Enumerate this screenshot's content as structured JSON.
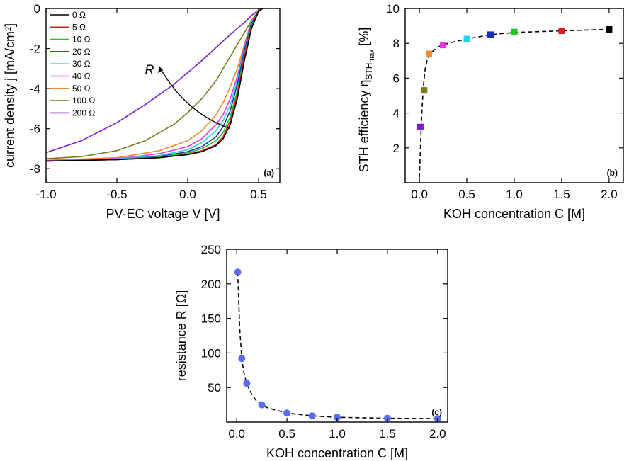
{
  "chart_data": [
    {
      "panel": "a",
      "type": "line",
      "panel_label": "(a)",
      "xlabel": "PV-EC voltage V [V]",
      "ylabel": "current density j [mA/cm²]",
      "xlim": [
        -1.0,
        0.65
      ],
      "ylim": [
        -8.7,
        0
      ],
      "xticks": [
        -1.0,
        -0.5,
        0.0,
        0.5
      ],
      "xtick_labels": [
        "-1.0",
        "-0.5",
        "0.0",
        "0.5"
      ],
      "yticks": [
        0,
        -2,
        -4,
        -6,
        -8
      ],
      "ytick_labels": [
        "0",
        "-2",
        "-4",
        "-6",
        "-8"
      ],
      "annotation": "R",
      "legend_position": "top-left",
      "series": [
        {
          "name": "0 Ω",
          "color": "#000000",
          "points": [
            [
              -1.0,
              -7.62
            ],
            [
              -0.5,
              -7.55
            ],
            [
              -0.2,
              -7.45
            ],
            [
              0.0,
              -7.3
            ],
            [
              0.1,
              -7.15
            ],
            [
              0.2,
              -6.85
            ],
            [
              0.25,
              -6.5
            ],
            [
              0.3,
              -5.8
            ],
            [
              0.35,
              -4.5
            ],
            [
              0.4,
              -2.6
            ],
            [
              0.45,
              -1.0
            ],
            [
              0.5,
              -0.15
            ],
            [
              0.53,
              0.0
            ]
          ]
        },
        {
          "name": "5 Ω",
          "color": "#e31a1c",
          "points": [
            [
              -1.0,
              -7.62
            ],
            [
              -0.5,
              -7.55
            ],
            [
              -0.2,
              -7.45
            ],
            [
              0.0,
              -7.28
            ],
            [
              0.1,
              -7.1
            ],
            [
              0.2,
              -6.8
            ],
            [
              0.25,
              -6.4
            ],
            [
              0.3,
              -5.6
            ],
            [
              0.35,
              -4.3
            ],
            [
              0.4,
              -2.4
            ],
            [
              0.45,
              -0.9
            ],
            [
              0.5,
              -0.12
            ],
            [
              0.53,
              0.0
            ]
          ]
        },
        {
          "name": "10 Ω",
          "color": "#22c422",
          "points": [
            [
              -1.0,
              -7.62
            ],
            [
              -0.5,
              -7.55
            ],
            [
              -0.2,
              -7.42
            ],
            [
              0.0,
              -7.22
            ],
            [
              0.1,
              -7.0
            ],
            [
              0.2,
              -6.6
            ],
            [
              0.25,
              -6.2
            ],
            [
              0.3,
              -5.4
            ],
            [
              0.35,
              -4.1
            ],
            [
              0.4,
              -2.3
            ],
            [
              0.45,
              -0.85
            ],
            [
              0.5,
              -0.1
            ],
            [
              0.53,
              0.0
            ]
          ]
        },
        {
          "name": "20 Ω",
          "color": "#1f2bb8",
          "points": [
            [
              -1.0,
              -7.62
            ],
            [
              -0.5,
              -7.55
            ],
            [
              -0.2,
              -7.4
            ],
            [
              0.0,
              -7.15
            ],
            [
              0.1,
              -6.9
            ],
            [
              0.2,
              -6.4
            ],
            [
              0.25,
              -5.9
            ],
            [
              0.3,
              -5.1
            ],
            [
              0.35,
              -3.8
            ],
            [
              0.4,
              -2.1
            ],
            [
              0.45,
              -0.75
            ],
            [
              0.5,
              -0.1
            ],
            [
              0.53,
              0.0
            ]
          ]
        },
        {
          "name": "30 Ω",
          "color": "#22d3e6",
          "points": [
            [
              -1.0,
              -7.62
            ],
            [
              -0.5,
              -7.52
            ],
            [
              -0.2,
              -7.35
            ],
            [
              0.0,
              -7.05
            ],
            [
              0.1,
              -6.7
            ],
            [
              0.2,
              -6.1
            ],
            [
              0.25,
              -5.6
            ],
            [
              0.3,
              -4.8
            ],
            [
              0.35,
              -3.6
            ],
            [
              0.4,
              -2.0
            ],
            [
              0.45,
              -0.7
            ],
            [
              0.5,
              -0.08
            ],
            [
              0.53,
              0.0
            ]
          ]
        },
        {
          "name": "40 Ω",
          "color": "#e834e8",
          "points": [
            [
              -1.0,
              -7.6
            ],
            [
              -0.5,
              -7.5
            ],
            [
              -0.2,
              -7.25
            ],
            [
              0.0,
              -6.9
            ],
            [
              0.1,
              -6.5
            ],
            [
              0.2,
              -5.8
            ],
            [
              0.25,
              -5.3
            ],
            [
              0.3,
              -4.5
            ],
            [
              0.35,
              -3.4
            ],
            [
              0.4,
              -1.9
            ],
            [
              0.45,
              -0.65
            ],
            [
              0.5,
              -0.08
            ],
            [
              0.53,
              0.0
            ]
          ]
        },
        {
          "name": "50 Ω",
          "color": "#f28a2e",
          "points": [
            [
              -1.0,
              -7.58
            ],
            [
              -0.5,
              -7.45
            ],
            [
              -0.2,
              -7.1
            ],
            [
              0.0,
              -6.6
            ],
            [
              0.1,
              -6.1
            ],
            [
              0.2,
              -5.3
            ],
            [
              0.25,
              -4.7
            ],
            [
              0.3,
              -3.9
            ],
            [
              0.35,
              -3.0
            ],
            [
              0.4,
              -1.8
            ],
            [
              0.45,
              -0.6
            ],
            [
              0.5,
              -0.07
            ],
            [
              0.53,
              0.0
            ]
          ]
        },
        {
          "name": "100 Ω",
          "color": "#7c7a1e",
          "points": [
            [
              -1.0,
              -7.5
            ],
            [
              -0.75,
              -7.4
            ],
            [
              -0.5,
              -7.1
            ],
            [
              -0.3,
              -6.6
            ],
            [
              -0.1,
              -5.8
            ],
            [
              0.0,
              -5.2
            ],
            [
              0.1,
              -4.5
            ],
            [
              0.2,
              -3.6
            ],
            [
              0.3,
              -2.4
            ],
            [
              0.4,
              -1.2
            ],
            [
              0.45,
              -0.6
            ],
            [
              0.5,
              -0.1
            ],
            [
              0.53,
              0.0
            ]
          ]
        },
        {
          "name": "200 Ω",
          "color": "#7a1fd1",
          "points": [
            [
              -1.0,
              -7.2
            ],
            [
              -0.75,
              -6.6
            ],
            [
              -0.5,
              -5.7
            ],
            [
              -0.3,
              -4.8
            ],
            [
              -0.1,
              -3.8
            ],
            [
              0.0,
              -3.2
            ],
            [
              0.1,
              -2.6
            ],
            [
              0.2,
              -1.95
            ],
            [
              0.3,
              -1.3
            ],
            [
              0.4,
              -0.7
            ],
            [
              0.45,
              -0.35
            ],
            [
              0.5,
              -0.08
            ],
            [
              0.53,
              0.0
            ]
          ]
        }
      ]
    },
    {
      "panel": "b",
      "type": "scatter",
      "panel_label": "(b)",
      "xlabel": "KOH concentration C [M]",
      "ylabel": "STH efficiency η",
      "ylabel_subscript": "STH",
      "ylabel_sub_subscript": "max",
      "ylabel_unit": "[%]",
      "xlim": [
        -0.15,
        2.15
      ],
      "ylim": [
        0,
        10
      ],
      "xticks": [
        0.0,
        0.5,
        1.0,
        1.5,
        2.0
      ],
      "xtick_labels": [
        "0.0",
        "0.5",
        "1.0",
        "1.5",
        "2.0"
      ],
      "yticks": [
        2,
        4,
        6,
        8,
        10
      ],
      "ytick_labels": [
        "2",
        "4",
        "6",
        "8",
        "10"
      ],
      "points": [
        {
          "x": 0.01,
          "y": 3.2,
          "color": "#7a1fd1"
        },
        {
          "x": 0.05,
          "y": 5.3,
          "color": "#7c7a1e"
        },
        {
          "x": 0.1,
          "y": 7.4,
          "color": "#f28a2e"
        },
        {
          "x": 0.25,
          "y": 7.9,
          "color": "#e834e8"
        },
        {
          "x": 0.5,
          "y": 8.25,
          "color": "#22d3e6"
        },
        {
          "x": 0.75,
          "y": 8.5,
          "color": "#1f2bb8"
        },
        {
          "x": 1.0,
          "y": 8.65,
          "color": "#22c422"
        },
        {
          "x": 1.5,
          "y": 8.72,
          "color": "#e31a1c"
        },
        {
          "x": 2.0,
          "y": 8.8,
          "color": "#000000"
        }
      ],
      "fit_curve": {
        "x": [
          0.0,
          0.02,
          0.04,
          0.06,
          0.08,
          0.1,
          0.15,
          0.2,
          0.3,
          0.5,
          0.75,
          1.0,
          1.5,
          2.0
        ],
        "y": [
          0.3,
          3.4,
          5.4,
          6.5,
          7.0,
          7.3,
          7.6,
          7.8,
          8.0,
          8.25,
          8.5,
          8.62,
          8.72,
          8.8
        ]
      }
    },
    {
      "panel": "c",
      "type": "scatter",
      "panel_label": "(c)",
      "xlabel": "KOH concentration C [M]",
      "ylabel": "resistance R [Ω]",
      "xlim": [
        -0.1,
        2.1
      ],
      "ylim": [
        0,
        250
      ],
      "xticks": [
        0.0,
        0.5,
        1.0,
        1.5,
        2.0
      ],
      "xtick_labels": [
        "0.0",
        "0.5",
        "1.0",
        "1.5",
        "2.0"
      ],
      "yticks": [
        50,
        100,
        150,
        200,
        250
      ],
      "ytick_labels": [
        "50",
        "100",
        "150",
        "200",
        "250"
      ],
      "marker_color": "#5a6cf0",
      "points": [
        {
          "x": 0.01,
          "y": 217
        },
        {
          "x": 0.05,
          "y": 92
        },
        {
          "x": 0.1,
          "y": 56
        },
        {
          "x": 0.25,
          "y": 25
        },
        {
          "x": 0.5,
          "y": 13
        },
        {
          "x": 0.75,
          "y": 9
        },
        {
          "x": 1.0,
          "y": 7
        },
        {
          "x": 1.5,
          "y": 5.5
        },
        {
          "x": 2.0,
          "y": 5
        }
      ],
      "fit_curve": {
        "x": [
          0.01,
          0.02,
          0.03,
          0.05,
          0.07,
          0.1,
          0.15,
          0.2,
          0.3,
          0.5,
          0.75,
          1.0,
          1.5,
          2.0
        ],
        "y": [
          217,
          175,
          135,
          92,
          72,
          55,
          40,
          30,
          21,
          13,
          9,
          7,
          5.5,
          5
        ]
      }
    }
  ]
}
